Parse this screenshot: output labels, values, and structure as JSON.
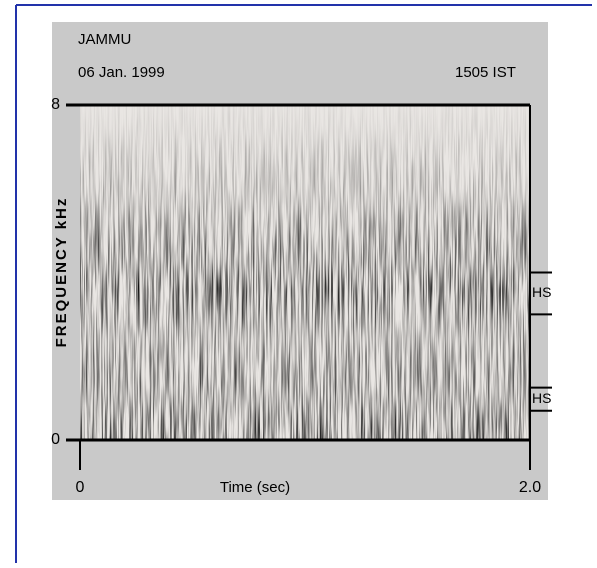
{
  "chart_data": {
    "type": "spectrogram",
    "station": "JAMMU",
    "date": "06 Jan. 1999",
    "time_label": "1505 IST",
    "y_label": "FREQUENCY kHz",
    "x_label": "Time (sec)",
    "xlim": [
      0,
      2
    ],
    "xticks": [
      0,
      {
        "value": 2,
        "label": "2.0"
      }
    ],
    "ylim": [
      0,
      8
    ],
    "yticks": [
      0,
      8
    ],
    "bands": [
      {
        "label": "HS",
        "range": [
          3,
          4
        ]
      },
      {
        "label": "HS",
        "range": [
          0.7,
          1.25
        ]
      }
    ]
  }
}
